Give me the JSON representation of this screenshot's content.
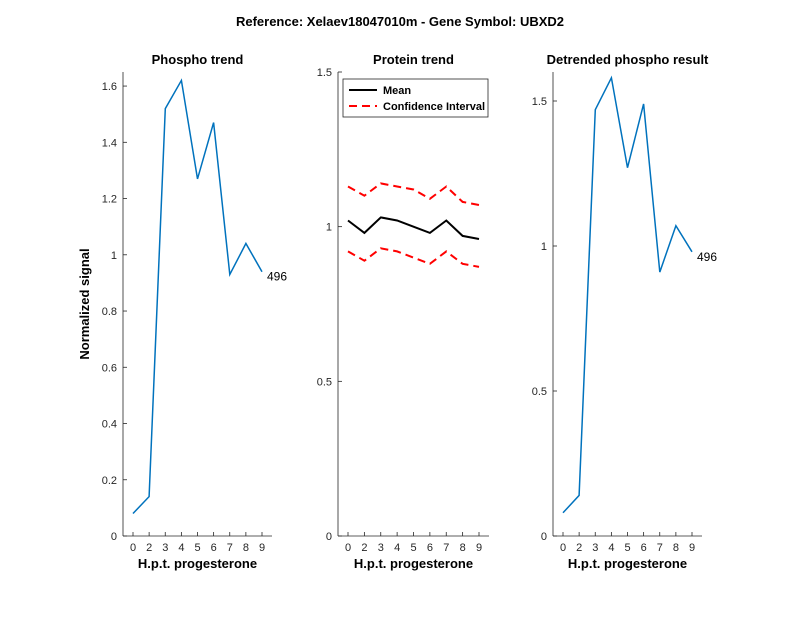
{
  "figure": {
    "title": "Reference:  Xelaev18047010m - Gene Symbol:  UBXD2"
  },
  "chart_data": [
    {
      "type": "line",
      "title": "Phospho trend",
      "xlabel": "H.p.t. progesterone",
      "ylabel": "Normalized signal",
      "x_ticks": [
        "0",
        "2",
        "3",
        "4",
        "5",
        "6",
        "7",
        "8",
        "9"
      ],
      "ylim": [
        0,
        1.65
      ],
      "y_ticks": [
        0,
        0.2,
        0.4,
        0.6,
        0.8,
        1,
        1.2,
        1.4,
        1.6
      ],
      "y_tick_labels": [
        "0",
        "0.2",
        "0.4",
        "0.6",
        "0.8",
        "1",
        "1.2",
        "1.4",
        "1.6"
      ],
      "series": [
        {
          "color": "#0072bd",
          "dash": "none",
          "values": [
            0.08,
            0.14,
            1.52,
            1.62,
            1.27,
            1.47,
            0.93,
            1.04,
            0.94
          ]
        }
      ],
      "annotation": "496",
      "grid": false
    },
    {
      "type": "line",
      "title": "Protein trend",
      "xlabel": "H.p.t. progesterone",
      "ylabel": "",
      "x_ticks": [
        "0",
        "2",
        "3",
        "4",
        "5",
        "6",
        "7",
        "8",
        "9"
      ],
      "ylim": [
        0,
        1.5
      ],
      "y_ticks": [
        0,
        0.5,
        1,
        1.5
      ],
      "y_tick_labels": [
        "0",
        "0.5",
        "1",
        "1.5"
      ],
      "series": [
        {
          "name": "Mean",
          "color": "#000000",
          "dash": "none",
          "values": [
            1.02,
            0.98,
            1.03,
            1.02,
            1.0,
            0.98,
            1.02,
            0.97,
            0.96
          ]
        },
        {
          "name": "Confidence Interval",
          "color": "#ff0000",
          "dash": "8,5",
          "values": [
            1.13,
            1.1,
            1.14,
            1.13,
            1.12,
            1.09,
            1.13,
            1.08,
            1.07
          ]
        },
        {
          "color": "#ff0000",
          "dash": "8,5",
          "values": [
            0.92,
            0.89,
            0.93,
            0.92,
            0.9,
            0.88,
            0.92,
            0.88,
            0.87
          ]
        }
      ],
      "legend": [
        "Mean",
        "Confidence Interval"
      ],
      "legend_position": "top-left",
      "grid": false
    },
    {
      "type": "line",
      "title": "Detrended phospho result",
      "xlabel": "H.p.t. progesterone",
      "ylabel": "",
      "x_ticks": [
        "0",
        "2",
        "3",
        "4",
        "5",
        "6",
        "7",
        "8",
        "9"
      ],
      "ylim": [
        0,
        1.6
      ],
      "y_ticks": [
        0,
        0.5,
        1,
        1.5
      ],
      "y_tick_labels": [
        "0",
        "0.5",
        "1",
        "1.5"
      ],
      "series": [
        {
          "color": "#0072bd",
          "dash": "none",
          "values": [
            0.08,
            0.14,
            1.47,
            1.58,
            1.27,
            1.49,
            0.91,
            1.07,
            0.98
          ]
        }
      ],
      "annotation": "496",
      "grid": false
    }
  ]
}
